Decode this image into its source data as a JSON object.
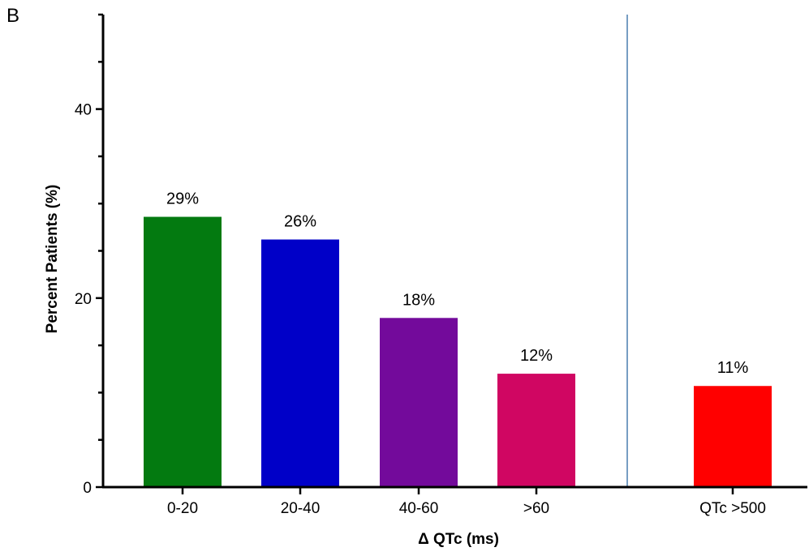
{
  "panel_label": "B",
  "chart_data": {
    "type": "bar",
    "title": "",
    "xlabel": "Δ QTc (ms)",
    "ylabel": "Percent Patients (%)",
    "ylim": [
      0,
      50
    ],
    "yticks": [
      0,
      20,
      40
    ],
    "minor_y_step": 5,
    "categories": [
      "0-20",
      "20-40",
      "40-60",
      ">60",
      "QTc >500"
    ],
    "values": [
      28.6,
      26.2,
      17.9,
      12.0,
      10.7
    ],
    "data_labels": [
      "29%",
      "26%",
      "18%",
      "12%",
      "11%"
    ],
    "colors": [
      "#037A10",
      "#0000C8",
      "#730A9B",
      "#D00662",
      "#FF0000"
    ],
    "separator_after_index": 3,
    "separator_color": "#4A7FAF",
    "grid": false,
    "legend": "none"
  }
}
